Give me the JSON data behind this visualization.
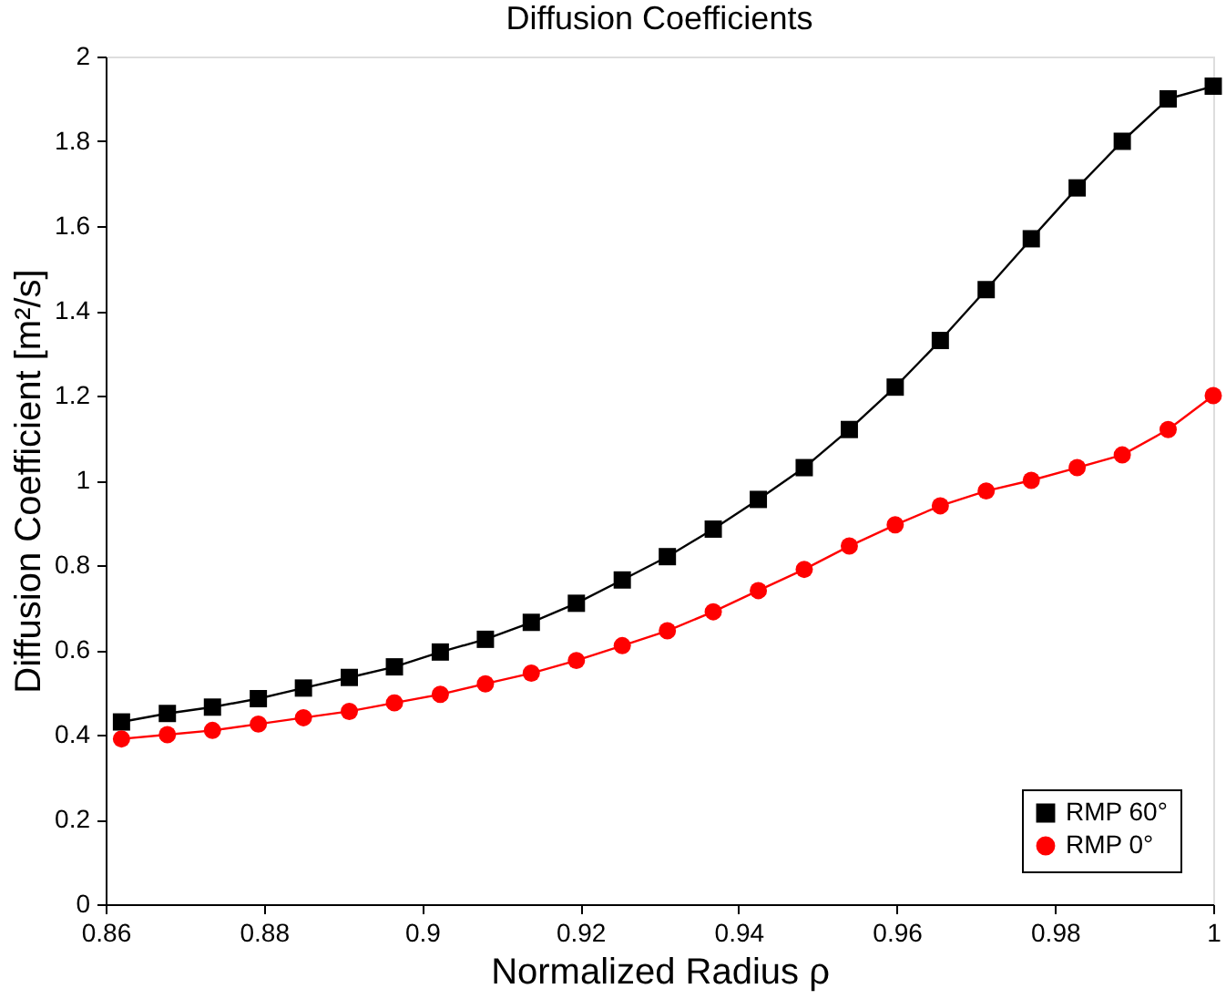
{
  "chart_data": {
    "type": "line",
    "title": "Diffusion Coefficients",
    "xlabel": "Normalized Radius ρ",
    "ylabel": "Diffusion Coefficient [m²/s]",
    "x": [
      0.862,
      0.8678,
      0.8735,
      0.8793,
      0.885,
      0.8908,
      0.8965,
      0.9023,
      0.908,
      0.9138,
      0.9195,
      0.9253,
      0.931,
      0.9368,
      0.9425,
      0.9483,
      0.954,
      0.9598,
      0.9655,
      0.9713,
      0.977,
      0.9828,
      0.9885,
      0.9943,
      1.0
    ],
    "series": [
      {
        "name": "RMP 60°",
        "color": "#000000",
        "marker": "square",
        "values": [
          0.43,
          0.45,
          0.465,
          0.485,
          0.51,
          0.535,
          0.56,
          0.595,
          0.625,
          0.665,
          0.71,
          0.765,
          0.82,
          0.885,
          0.955,
          1.03,
          1.12,
          1.22,
          1.33,
          1.45,
          1.57,
          1.69,
          1.8,
          1.9,
          1.93
        ]
      },
      {
        "name": "RMP 0°",
        "color": "#ff0000",
        "marker": "circle",
        "values": [
          0.39,
          0.4,
          0.41,
          0.425,
          0.44,
          0.455,
          0.475,
          0.495,
          0.52,
          0.545,
          0.575,
          0.61,
          0.645,
          0.69,
          0.74,
          0.79,
          0.845,
          0.895,
          0.94,
          0.975,
          1.0,
          1.03,
          1.06,
          1.12,
          1.2
        ]
      }
    ],
    "xlim": [
      0.86,
      1.0
    ],
    "xticks": [
      0.86,
      0.88,
      0.9,
      0.92,
      0.94,
      0.96,
      0.98,
      1
    ],
    "ylim": [
      0,
      2
    ],
    "yticks": [
      0,
      0.2,
      0.4,
      0.6,
      0.8,
      1,
      1.2,
      1.4,
      1.6,
      1.8,
      2
    ],
    "grid": false,
    "legend": "bottom right",
    "line_style": "solid"
  }
}
